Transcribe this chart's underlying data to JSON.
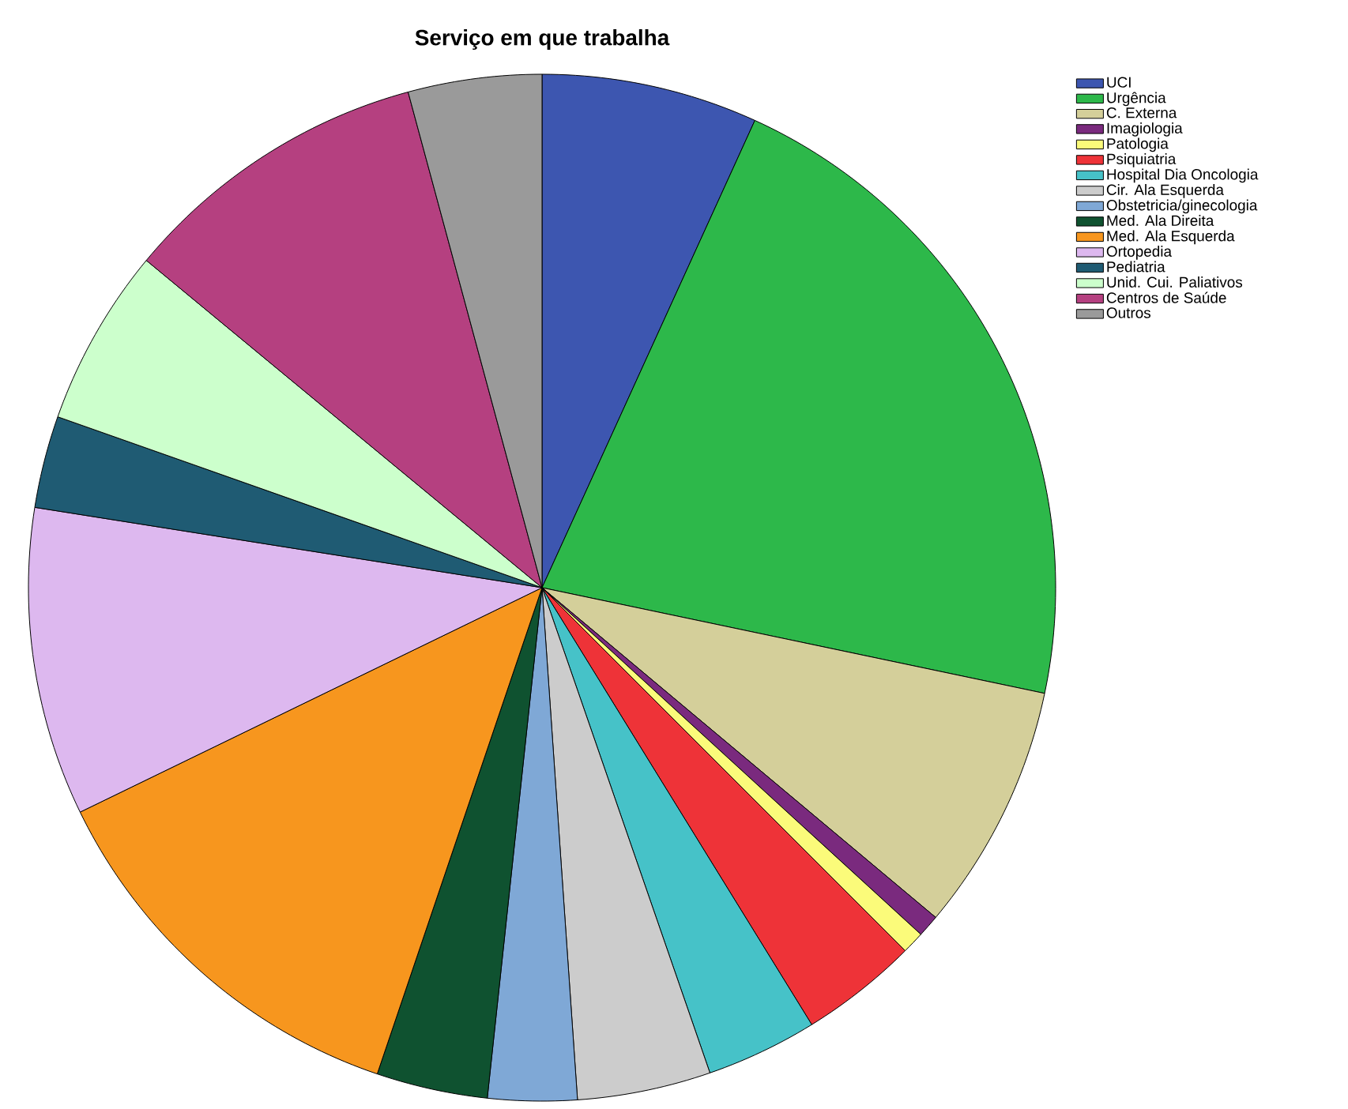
{
  "chart_data": {
    "type": "pie",
    "title": "Serviço em que trabalha",
    "categories": [
      "UCI",
      "Urgência",
      "C. Externa",
      "Imagiologia",
      "Patologia",
      "Psiquiatria",
      "Hospital Dia Oncologia",
      "Cir. Ala Esquerda",
      "Obstetricia/ginecologia",
      "Med. Ala Direita",
      "Med. Ala Esquerda",
      "Ortopedia",
      "Pediatria",
      "Unid. Cui. Paliativos",
      "Centros de Saúde",
      "Outros"
    ],
    "values": [
      6.8,
      21.5,
      7.8,
      0.7,
      0.7,
      3.7,
      3.5,
      4.2,
      2.8,
      3.5,
      12.6,
      9.7,
      2.9,
      5.6,
      9.8,
      4.2
    ],
    "colors": [
      "#3d56b0",
      "#2db84a",
      "#d4cf9a",
      "#7a2a7e",
      "#fbfb7a",
      "#ee3338",
      "#46c2c8",
      "#cccccc",
      "#7fa8d6",
      "#0f5230",
      "#f7961e",
      "#ddb8ef",
      "#1f5b73",
      "#ccffcc",
      "#b54080",
      "#9a9a9a"
    ],
    "legend": "top right"
  }
}
